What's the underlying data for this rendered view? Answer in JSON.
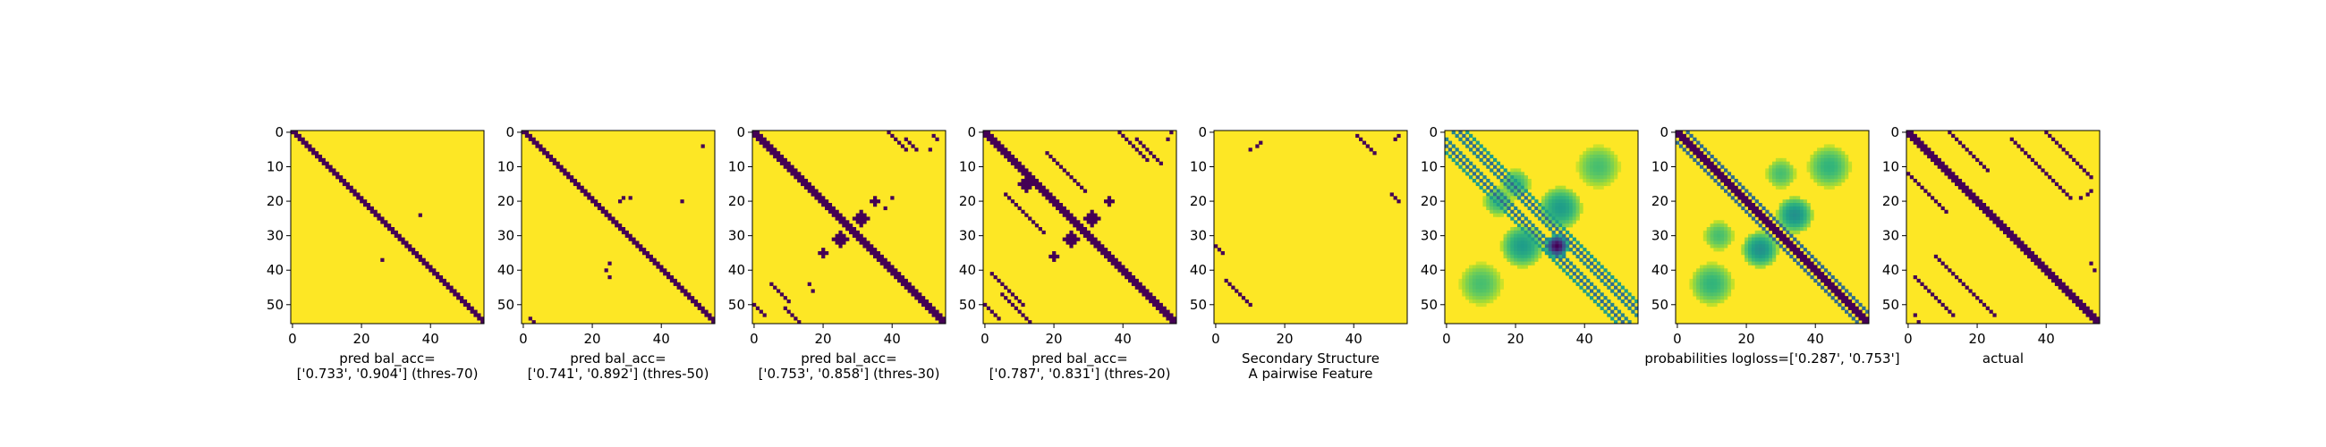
{
  "chart_data": [
    {
      "type": "heatmap",
      "title": "",
      "xlabel_lines": [
        "pred bal_acc=",
        "['0.733', '0.904'] (thres-70)"
      ],
      "xticks": [
        0,
        20,
        40
      ],
      "yticks": [
        0,
        10,
        20,
        30,
        40,
        50
      ],
      "xlim": [
        -0.5,
        55.5
      ],
      "ylim": [
        55.5,
        -0.5
      ],
      "grid": false,
      "colormap": "viridis",
      "binary": true,
      "pattern": {
        "bands": [
          {
            "offset": 0,
            "width": 2,
            "x_from": 0,
            "x_to": 56
          }
        ],
        "points": [
          [
            37,
            24
          ],
          [
            26,
            37
          ]
        ]
      }
    },
    {
      "type": "heatmap",
      "title": "",
      "xlabel_lines": [
        "pred bal_acc=",
        "['0.741', '0.892'] (thres-50)"
      ],
      "xticks": [
        0,
        20,
        40
      ],
      "yticks": [
        0,
        10,
        20,
        30,
        40,
        50
      ],
      "xlim": [
        -0.5,
        55.5
      ],
      "ylim": [
        55.5,
        -0.5
      ],
      "grid": false,
      "colormap": "viridis",
      "binary": true,
      "pattern": {
        "bands": [
          {
            "offset": 0,
            "width": 2,
            "x_from": 0,
            "x_to": 56
          }
        ],
        "points": [
          [
            52,
            4
          ],
          [
            46,
            20
          ],
          [
            28,
            20
          ],
          [
            29,
            19
          ],
          [
            31,
            19
          ],
          [
            25,
            38
          ],
          [
            24,
            40
          ],
          [
            25,
            42
          ],
          [
            3,
            55
          ],
          [
            2,
            54
          ]
        ]
      }
    },
    {
      "type": "heatmap",
      "title": "",
      "xlabel_lines": [
        "pred bal_acc=",
        "['0.753', '0.858'] (thres-30)"
      ],
      "xticks": [
        0,
        20,
        40
      ],
      "yticks": [
        0,
        10,
        20,
        30,
        40,
        50
      ],
      "xlim": [
        -0.5,
        55.5
      ],
      "ylim": [
        55.5,
        -0.5
      ],
      "grid": false,
      "colormap": "viridis",
      "binary": true,
      "pattern": {
        "bands": [
          {
            "offset": 0,
            "width": 3,
            "x_from": 0,
            "x_to": 56
          },
          {
            "offset": -39,
            "width": 1,
            "x_from": 39,
            "x_to": 45
          },
          {
            "offset": -42,
            "width": 1,
            "x_from": 44,
            "x_to": 48
          },
          {
            "offset": 39,
            "width": 1,
            "x_from": 5,
            "x_to": 11
          },
          {
            "offset": 42,
            "width": 1,
            "x_from": 9,
            "x_to": 14
          },
          {
            "offset": 50,
            "width": 1,
            "x_from": 0,
            "x_to": 4
          }
        ],
        "blobs": [
          {
            "cx": 31,
            "cy": 25,
            "r": 2
          },
          {
            "cx": 25,
            "cy": 31,
            "r": 2
          },
          {
            "cx": 35,
            "cy": 20,
            "r": 1
          },
          {
            "cx": 20,
            "cy": 35,
            "r": 1
          }
        ],
        "points": [
          [
            53,
            2
          ],
          [
            51,
            5
          ],
          [
            52,
            1
          ],
          [
            16,
            44
          ],
          [
            17,
            46
          ],
          [
            38,
            22
          ],
          [
            40,
            19
          ]
        ]
      }
    },
    {
      "type": "heatmap",
      "title": "",
      "xlabel_lines": [
        "pred bal_acc=",
        "['0.787', '0.831'] (thres-20)"
      ],
      "xticks": [
        0,
        20,
        40
      ],
      "yticks": [
        0,
        10,
        20,
        30,
        40,
        50
      ],
      "xlim": [
        -0.5,
        55.5
      ],
      "ylim": [
        55.5,
        -0.5
      ],
      "grid": false,
      "colormap": "viridis",
      "binary": true,
      "pattern": {
        "bands": [
          {
            "offset": 0,
            "width": 3,
            "x_from": 0,
            "x_to": 56
          },
          {
            "offset": -39,
            "width": 1,
            "x_from": 39,
            "x_to": 48
          },
          {
            "offset": -42,
            "width": 1,
            "x_from": 44,
            "x_to": 52
          },
          {
            "offset": 39,
            "width": 1,
            "x_from": 2,
            "x_to": 12
          },
          {
            "offset": 42,
            "width": 1,
            "x_from": 5,
            "x_to": 14
          },
          {
            "offset": 50,
            "width": 1,
            "x_from": 0,
            "x_to": 5
          },
          {
            "offset": -12,
            "width": 1,
            "x_from": 18,
            "x_to": 30
          },
          {
            "offset": 12,
            "width": 1,
            "x_from": 6,
            "x_to": 18
          }
        ],
        "blobs": [
          {
            "cx": 31,
            "cy": 25,
            "r": 2
          },
          {
            "cx": 25,
            "cy": 31,
            "r": 2
          },
          {
            "cx": 12,
            "cy": 15,
            "r": 2
          },
          {
            "cx": 36,
            "cy": 20,
            "r": 1
          },
          {
            "cx": 20,
            "cy": 36,
            "r": 1
          }
        ],
        "points": [
          [
            53,
            2
          ],
          [
            54,
            0
          ]
        ]
      }
    },
    {
      "type": "heatmap",
      "title": "",
      "xlabel_lines": [
        "Secondary Structure",
        "A pairwise Feature"
      ],
      "xticks": [
        0,
        20,
        40
      ],
      "yticks": [
        0,
        10,
        20,
        30,
        40,
        50
      ],
      "xlim": [
        -0.5,
        55.5
      ],
      "ylim": [
        55.5,
        -0.5
      ],
      "grid": false,
      "colormap": "viridis",
      "binary": true,
      "pattern": {
        "bands": [
          {
            "offset": -40,
            "width": 1,
            "x_from": 41,
            "x_to": 47
          },
          {
            "offset": 40,
            "width": 1,
            "x_from": 3,
            "x_to": 11
          },
          {
            "offset": -33,
            "width": 1,
            "x_from": 51,
            "x_to": 54
          },
          {
            "offset": 33,
            "width": 1,
            "x_from": 0,
            "x_to": 3
          }
        ],
        "points": [
          [
            10,
            5
          ],
          [
            12,
            4
          ],
          [
            13,
            3
          ],
          [
            53,
            1
          ],
          [
            52,
            2
          ]
        ]
      }
    },
    {
      "type": "heatmap",
      "title": "",
      "xlabel_lines": [],
      "xticks": [
        0,
        20,
        40
      ],
      "yticks": [
        0,
        10,
        20,
        30,
        40,
        50
      ],
      "xlim": [
        -0.5,
        55.5
      ],
      "ylim": [
        55.5,
        -0.5
      ],
      "grid": false,
      "colormap": "viridis",
      "binary": false,
      "pattern": {
        "lines": [
          {
            "offset": -2,
            "value": 0.45
          },
          {
            "offset": 2,
            "value": 0.45
          },
          {
            "offset": -4,
            "value": 0.35
          },
          {
            "offset": 4,
            "value": 0.35
          },
          {
            "offset": -6,
            "value": 0.55
          },
          {
            "offset": 6,
            "value": 0.55
          }
        ],
        "blobs": [
          {
            "cx": 32,
            "cy": 33,
            "r": 3,
            "value": 0.0
          },
          {
            "cx": 33,
            "cy": 22,
            "r": 6,
            "value": 0.55
          },
          {
            "cx": 22,
            "cy": 33,
            "r": 6,
            "value": 0.55
          },
          {
            "cx": 44,
            "cy": 10,
            "r": 6,
            "value": 0.7
          },
          {
            "cx": 10,
            "cy": 44,
            "r": 6,
            "value": 0.7
          },
          {
            "cx": 20,
            "cy": 15,
            "r": 4,
            "value": 0.65
          },
          {
            "cx": 15,
            "cy": 20,
            "r": 4,
            "value": 0.65
          }
        ]
      }
    },
    {
      "type": "heatmap",
      "title": "",
      "xlabel_lines": [
        "probabilities logloss=['0.287', '0.753']"
      ],
      "xticks": [
        0,
        20,
        40
      ],
      "yticks": [
        0,
        10,
        20,
        30,
        40,
        50
      ],
      "xlim": [
        -0.5,
        55.5
      ],
      "ylim": [
        55.5,
        -0.5
      ],
      "grid": false,
      "colormap": "viridis",
      "binary": false,
      "pattern": {
        "lines": [
          {
            "offset": 0,
            "value": 0.0,
            "width": 3
          },
          {
            "offset": -3,
            "value": 0.35
          },
          {
            "offset": 3,
            "value": 0.35
          }
        ],
        "blobs": [
          {
            "cx": 34,
            "cy": 24,
            "r": 5,
            "value": 0.5
          },
          {
            "cx": 24,
            "cy": 34,
            "r": 5,
            "value": 0.5
          },
          {
            "cx": 44,
            "cy": 10,
            "r": 6,
            "value": 0.65
          },
          {
            "cx": 10,
            "cy": 44,
            "r": 6,
            "value": 0.65
          },
          {
            "cx": 30,
            "cy": 12,
            "r": 4,
            "value": 0.7
          },
          {
            "cx": 12,
            "cy": 30,
            "r": 4,
            "value": 0.7
          }
        ]
      }
    },
    {
      "type": "heatmap",
      "title": "",
      "xlabel_lines": [
        "actual"
      ],
      "xticks": [
        0,
        20,
        40
      ],
      "yticks": [
        0,
        10,
        20,
        30,
        40,
        50
      ],
      "xlim": [
        -0.5,
        55.5
      ],
      "ylim": [
        55.5,
        -0.5
      ],
      "grid": false,
      "colormap": "viridis",
      "binary": true,
      "pattern": {
        "bands": [
          {
            "offset": 0,
            "width": 3,
            "x_from": 0,
            "x_to": 56
          },
          {
            "offset": -12,
            "width": 1,
            "x_from": 12,
            "x_to": 24
          },
          {
            "offset": 12,
            "width": 1,
            "x_from": 0,
            "x_to": 12
          },
          {
            "offset": -40,
            "width": 1,
            "x_from": 40,
            "x_to": 54
          },
          {
            "offset": 40,
            "width": 1,
            "x_from": 2,
            "x_to": 14
          },
          {
            "offset": -28,
            "width": 1,
            "x_from": 30,
            "x_to": 48
          },
          {
            "offset": 28,
            "width": 1,
            "x_from": 8,
            "x_to": 26
          }
        ],
        "points": [
          [
            53,
            38
          ],
          [
            54,
            40
          ],
          [
            52,
            18
          ],
          [
            53,
            17
          ],
          [
            50,
            19
          ],
          [
            3,
            55
          ],
          [
            2,
            53
          ]
        ]
      }
    }
  ]
}
